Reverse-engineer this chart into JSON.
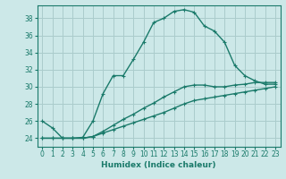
{
  "xlabel": "Humidex (Indice chaleur)",
  "bg_color": "#cce8e8",
  "grid_color": "#aacccc",
  "line_color": "#1a7a6a",
  "xlim": [
    -0.5,
    23.5
  ],
  "ylim": [
    23.0,
    39.5
  ],
  "xticks": [
    0,
    1,
    2,
    3,
    4,
    5,
    6,
    7,
    8,
    9,
    10,
    11,
    12,
    13,
    14,
    15,
    16,
    17,
    18,
    19,
    20,
    21,
    22,
    23
  ],
  "yticks": [
    24,
    26,
    28,
    30,
    32,
    34,
    36,
    38
  ],
  "line1_x": [
    0,
    1,
    2,
    3,
    4,
    5,
    6,
    7,
    8,
    9,
    10,
    11,
    12,
    13,
    14,
    15,
    16,
    17,
    18,
    19,
    20,
    21,
    22,
    23
  ],
  "line1_y": [
    26.0,
    25.2,
    24.0,
    24.0,
    24.1,
    26.0,
    29.2,
    31.3,
    31.3,
    33.2,
    35.2,
    37.5,
    38.0,
    38.8,
    39.0,
    38.7,
    37.1,
    36.5,
    35.2,
    32.5,
    31.3,
    30.7,
    30.3,
    30.3
  ],
  "line2_x": [
    0,
    1,
    2,
    3,
    4,
    5,
    6,
    7,
    8,
    9,
    10,
    11,
    12,
    13,
    14,
    15,
    16,
    17,
    18,
    19,
    20,
    21,
    22,
    23
  ],
  "line2_y": [
    24.0,
    24.0,
    24.0,
    24.0,
    24.0,
    24.2,
    24.8,
    25.5,
    26.2,
    26.8,
    27.5,
    28.1,
    28.8,
    29.4,
    30.0,
    30.2,
    30.2,
    30.0,
    30.0,
    30.2,
    30.3,
    30.5,
    30.5,
    30.5
  ],
  "line3_x": [
    0,
    1,
    2,
    3,
    4,
    5,
    6,
    7,
    8,
    9,
    10,
    11,
    12,
    13,
    14,
    15,
    16,
    17,
    18,
    19,
    20,
    21,
    22,
    23
  ],
  "line3_y": [
    24.0,
    24.0,
    24.0,
    24.0,
    24.0,
    24.2,
    24.6,
    25.0,
    25.4,
    25.8,
    26.2,
    26.6,
    27.0,
    27.5,
    28.0,
    28.4,
    28.6,
    28.8,
    29.0,
    29.2,
    29.4,
    29.6,
    29.8,
    30.0
  ]
}
